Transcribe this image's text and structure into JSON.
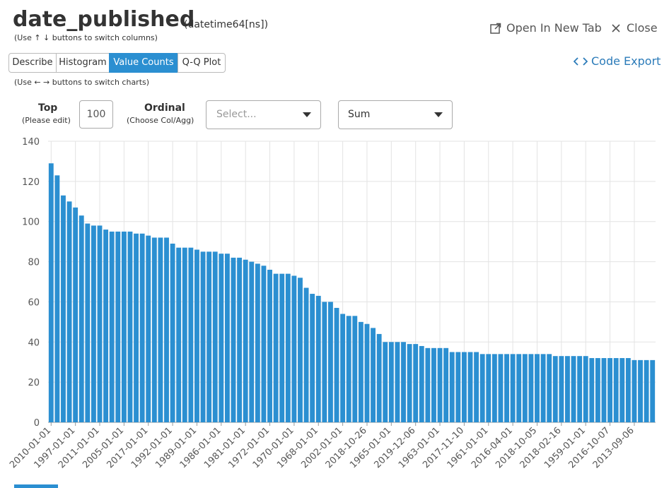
{
  "header": {
    "title": "date_published",
    "dtype": "(datetime64[ns])",
    "hint": "(Use ↑ ↓ buttons to switch columns)",
    "open_new_tab": "Open In New Tab",
    "close": "Close"
  },
  "tabs": [
    "Describe",
    "Histogram",
    "Value Counts",
    "Q-Q Plot"
  ],
  "tab_hint": "(Use ← → buttons to switch charts)",
  "code_export": "Code Export",
  "controls": {
    "top_label": "Top",
    "top_hint": "(Please edit)",
    "top_value": 100,
    "ordinal_label": "Ordinal",
    "ordinal_hint": "(Choose Col/Agg)",
    "ordinal_placeholder": "Select...",
    "agg": "Sum"
  },
  "chart_data": {
    "type": "bar",
    "color": "#2b8fd1",
    "grid": true,
    "categories": [
      "2010-01-01",
      null,
      null,
      null,
      "1997-01-01",
      null,
      null,
      null,
      "2011-01-01",
      null,
      null,
      null,
      "2005-01-01",
      null,
      null,
      null,
      "2017-01-01",
      null,
      null,
      null,
      "1992-01-01",
      null,
      null,
      null,
      "1989-01-01",
      null,
      null,
      null,
      "1986-01-01",
      null,
      null,
      null,
      "1981-01-01",
      null,
      null,
      null,
      "1972-01-01",
      null,
      null,
      null,
      "1970-01-01",
      null,
      null,
      null,
      "1968-01-01",
      null,
      null,
      null,
      "2002-01-01",
      null,
      null,
      null,
      "2018-10-26",
      null,
      null,
      null,
      "1965-01-01",
      null,
      null,
      null,
      "2019-12-06",
      null,
      null,
      null,
      "1963-01-01",
      null,
      null,
      null,
      "2017-11-10",
      null,
      null,
      null,
      "1961-01-01",
      null,
      null,
      null,
      "2016-04-01",
      null,
      null,
      null,
      "2018-10-05",
      null,
      null,
      null,
      "2018-02-16",
      null,
      null,
      null,
      "1959-01-01",
      null,
      null,
      null,
      "2016-10-07",
      null,
      null,
      null,
      "2013-09-06",
      null,
      null,
      null
    ],
    "values": [
      129,
      123,
      113,
      110,
      107,
      103,
      99,
      98,
      98,
      96,
      95,
      95,
      95,
      95,
      94,
      94,
      93,
      92,
      92,
      92,
      89,
      87,
      87,
      87,
      86,
      85,
      85,
      85,
      84,
      84,
      82,
      82,
      81,
      80,
      79,
      78,
      76,
      74,
      74,
      74,
      73,
      72,
      67,
      64,
      63,
      60,
      60,
      57,
      54,
      53,
      53,
      50,
      49,
      47,
      44,
      40,
      40,
      40,
      40,
      39,
      39,
      38,
      37,
      37,
      37,
      37,
      35,
      35,
      35,
      35,
      35,
      34,
      34,
      34,
      34,
      34,
      34,
      34,
      34,
      34,
      34,
      34,
      34,
      33,
      33,
      33,
      33,
      33,
      33,
      32,
      32,
      32,
      32,
      32,
      32,
      32,
      31,
      31,
      31,
      31
    ],
    "ylim": [
      0,
      140
    ],
    "yticks": [
      0,
      20,
      40,
      60,
      80,
      100,
      120,
      140
    ]
  }
}
